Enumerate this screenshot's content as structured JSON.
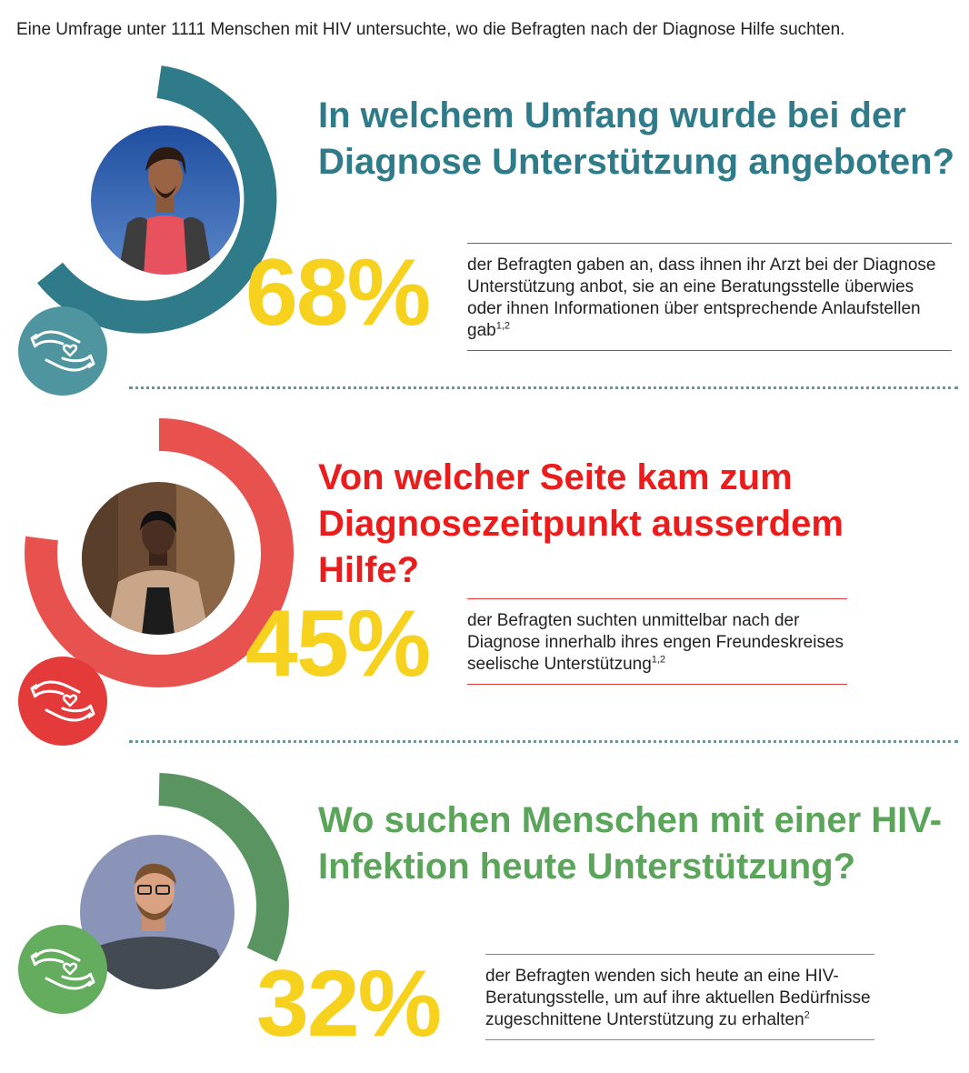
{
  "intro": "Eine Umfrage unter 1111 Menschen mit HIV untersuchte, wo die Befragten nach der Diagnose Hilfe suchten.",
  "sections": [
    {
      "heading": "In welchem Umfang wurde bei der Diagnose Unterstützung angeboten?",
      "percent": "68%",
      "description": "der Befragten gaben an, dass ihnen ihr Arzt bei der Diagnose Unterstützung anbot, sie an eine Beratungsstelle überwies oder ihnen Informationen über entsprechende Anlaufstellen gab",
      "footnote": "1,2",
      "accent": "#2f7b89",
      "badge_color": "#4e95a0",
      "icon": "helping-hands-heart-icon"
    },
    {
      "heading": "Von welcher Seite kam zum Diagnosezeitpunkt ausserdem Hilfe?",
      "percent": "45%",
      "description": "der Befragten suchten unmittelbar nach der Diagnose innerhalb ihres engen Freundeskreises seelische Unterstützung",
      "footnote": "1,2",
      "accent": "#ea1c1c",
      "badge_color": "#e43a3a",
      "icon": "helping-hands-heart-icon"
    },
    {
      "heading": "Wo suchen Menschen mit einer HIV-Infektion heute Unterstützung?",
      "percent": "32%",
      "description": "der Befragten wenden sich heute an eine HIV-Beratungsstelle, um auf ihre aktuellen Bedürfnisse zugeschnittene Unterstützung zu erhalten",
      "footnote": "2",
      "accent": "#5aa55a",
      "badge_color": "#64ad5f",
      "icon": "helping-hands-heart-icon"
    }
  ],
  "colors": {
    "percent": "#f6d21e",
    "ring_teal": "#2f7b89",
    "ring_red": "#e8524e",
    "ring_green": "#5a9460",
    "divider": "#5a9aa0"
  }
}
